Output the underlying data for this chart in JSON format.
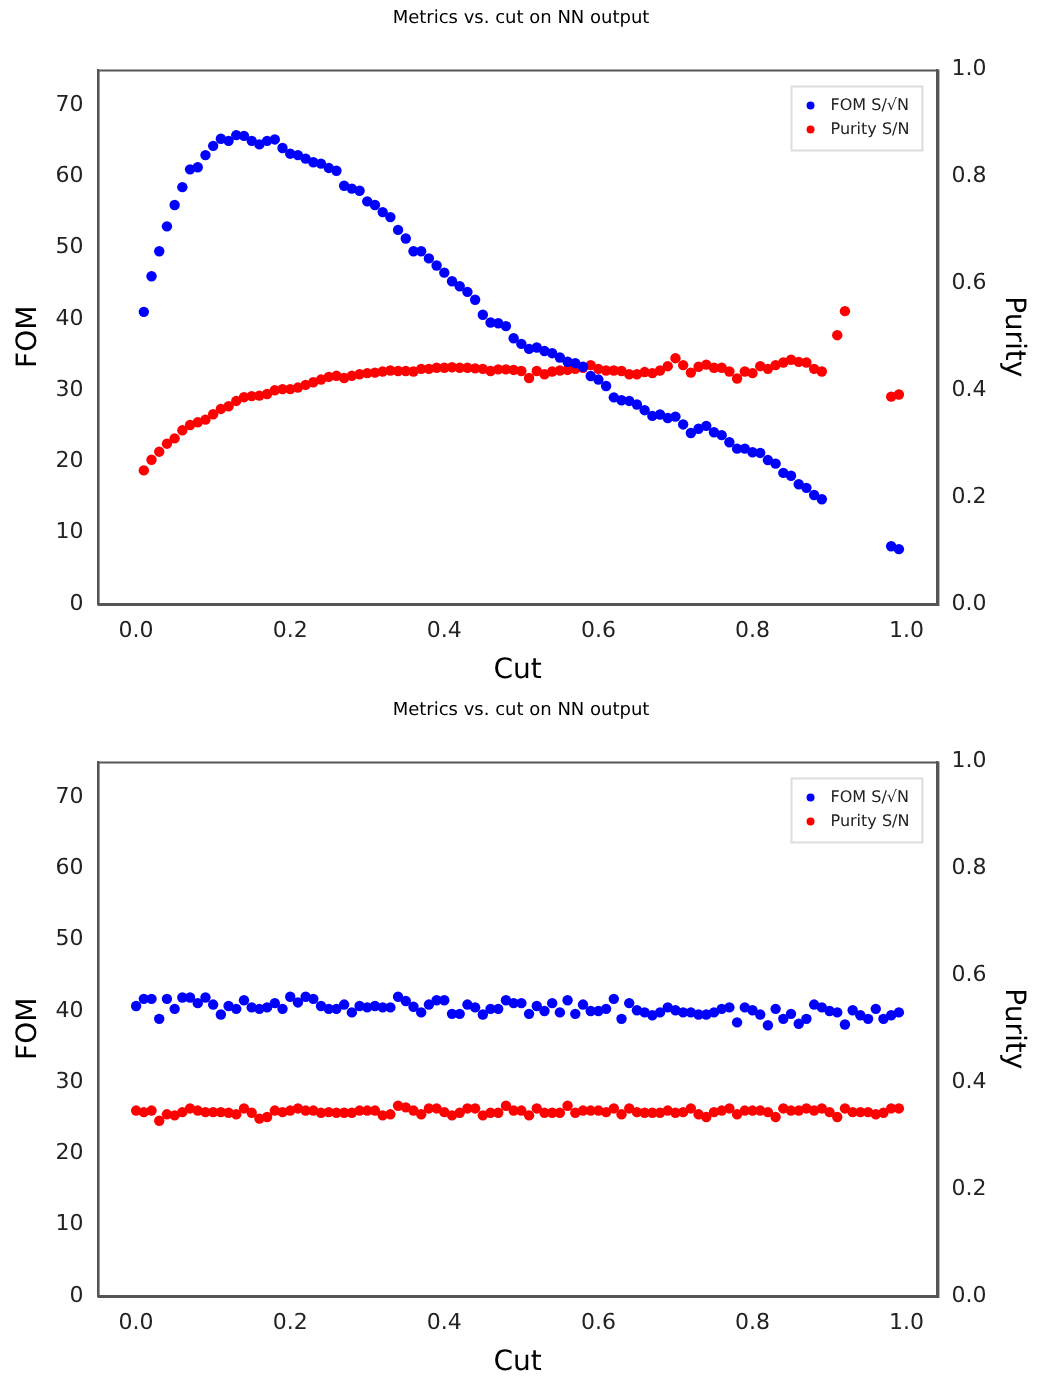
{
  "chart_data": [
    {
      "type": "scatter",
      "title": "Metrics vs. cut on NN output",
      "xlabel": "Cut",
      "ylabel": "FOM",
      "y2label": "Purity",
      "legend": "top right",
      "grid": false,
      "marker": "circle",
      "xlim": [
        -0.05,
        1.04
      ],
      "xticks": [
        {
          "value": 0,
          "label": "0.0"
        },
        {
          "value": 0.2,
          "label": "0.2"
        },
        {
          "value": 0.4,
          "label": "0.4"
        },
        {
          "value": 0.6,
          "label": "0.6"
        },
        {
          "value": 0.8,
          "label": "0.8"
        },
        {
          "value": 1,
          "label": "1.0"
        }
      ],
      "ylim": [
        0,
        75
      ],
      "yticks": [
        0,
        10,
        20,
        30,
        40,
        50,
        60,
        70
      ],
      "y2lim": [
        0,
        1
      ],
      "y2ticks": [
        {
          "value": 0,
          "label": "0.0"
        },
        {
          "value": 0.2,
          "label": "0.2"
        },
        {
          "value": 0.4,
          "label": "0.4"
        },
        {
          "value": 0.6,
          "label": "0.6"
        },
        {
          "value": 0.8,
          "label": "0.8"
        },
        {
          "value": 1,
          "label": "1.0"
        }
      ],
      "series": [
        {
          "name": "FOM S/√N",
          "color": "#0000ff",
          "x": [
            0.01,
            0.02,
            0.03,
            0.04,
            0.05,
            0.06,
            0.07,
            0.08,
            0.09,
            0.1,
            0.11,
            0.12,
            0.13,
            0.14,
            0.15,
            0.16,
            0.17,
            0.18,
            0.19,
            0.2,
            0.21,
            0.22,
            0.23,
            0.24,
            0.25,
            0.26,
            0.27,
            0.28,
            0.29,
            0.3,
            0.31,
            0.32,
            0.33,
            0.34,
            0.35,
            0.36,
            0.37,
            0.38,
            0.39,
            0.4,
            0.41,
            0.42,
            0.43,
            0.44,
            0.45,
            0.46,
            0.47,
            0.48,
            0.49,
            0.5,
            0.51,
            0.52,
            0.53,
            0.54,
            0.55,
            0.56,
            0.57,
            0.58,
            0.59,
            0.6,
            0.61,
            0.62,
            0.63,
            0.64,
            0.65,
            0.66,
            0.67,
            0.68,
            0.69,
            0.7,
            0.71,
            0.72,
            0.73,
            0.74,
            0.75,
            0.76,
            0.77,
            0.78,
            0.79,
            0.8,
            0.81,
            0.82,
            0.83,
            0.84,
            0.85,
            0.86,
            0.87,
            0.88,
            0.89,
            0.98,
            0.99
          ],
          "values": [
            41,
            46,
            49.5,
            53,
            56,
            58.5,
            61,
            61.3,
            63,
            64.3,
            65.3,
            65,
            65.8,
            65.7,
            65,
            64.5,
            65,
            65.2,
            64,
            63.2,
            63,
            62.5,
            62,
            61.8,
            61.2,
            60.8,
            58.7,
            58.3,
            58,
            56.5,
            56,
            55,
            54.3,
            52.5,
            51.3,
            49.5,
            49.5,
            48.5,
            47.5,
            46.5,
            45.3,
            44.6,
            43.8,
            42.7,
            40.6,
            39.5,
            39.4,
            39,
            37.3,
            36.5,
            35.8,
            36,
            35.5,
            35.2,
            34.6,
            34,
            33.8,
            33.3,
            32,
            31.5,
            30.6,
            29,
            28.6,
            28.5,
            28,
            27.2,
            26.4,
            26.6,
            26.1,
            26.3,
            25.2,
            24,
            24.6,
            25,
            24.1,
            23.7,
            22.7,
            21.8,
            21.8,
            21.3,
            21.2,
            20.2,
            19.7,
            18.4,
            18,
            16.8,
            16.3,
            15.3,
            14.7,
            8.1,
            7.7
          ]
        },
        {
          "name": "Purity S/N",
          "color": "#ff0000",
          "axis": "y2",
          "x": [
            0.01,
            0.02,
            0.03,
            0.04,
            0.05,
            0.06,
            0.07,
            0.08,
            0.09,
            0.1,
            0.11,
            0.12,
            0.13,
            0.14,
            0.15,
            0.16,
            0.17,
            0.18,
            0.19,
            0.2,
            0.21,
            0.22,
            0.23,
            0.24,
            0.25,
            0.26,
            0.27,
            0.28,
            0.29,
            0.3,
            0.31,
            0.32,
            0.33,
            0.34,
            0.35,
            0.36,
            0.37,
            0.38,
            0.39,
            0.4,
            0.41,
            0.42,
            0.43,
            0.44,
            0.45,
            0.46,
            0.47,
            0.48,
            0.49,
            0.5,
            0.51,
            0.52,
            0.53,
            0.54,
            0.55,
            0.56,
            0.57,
            0.58,
            0.59,
            0.6,
            0.61,
            0.62,
            0.63,
            0.64,
            0.65,
            0.66,
            0.67,
            0.68,
            0.69,
            0.7,
            0.71,
            0.72,
            0.73,
            0.74,
            0.75,
            0.76,
            0.77,
            0.78,
            0.79,
            0.8,
            0.81,
            0.82,
            0.83,
            0.84,
            0.85,
            0.86,
            0.87,
            0.88,
            0.89,
            0.91,
            0.92,
            0.98,
            0.99
          ],
          "values": [
            0.25,
            0.27,
            0.285,
            0.3,
            0.31,
            0.325,
            0.335,
            0.34,
            0.345,
            0.355,
            0.365,
            0.37,
            0.38,
            0.387,
            0.389,
            0.39,
            0.393,
            0.4,
            0.402,
            0.402,
            0.405,
            0.41,
            0.415,
            0.42,
            0.425,
            0.427,
            0.423,
            0.427,
            0.43,
            0.432,
            0.433,
            0.435,
            0.437,
            0.436,
            0.436,
            0.435,
            0.44,
            0.44,
            0.442,
            0.442,
            0.443,
            0.442,
            0.442,
            0.441,
            0.44,
            0.436,
            0.439,
            0.439,
            0.438,
            0.436,
            0.423,
            0.436,
            0.43,
            0.435,
            0.437,
            0.438,
            0.44,
            0.442,
            0.447,
            0.44,
            0.437,
            0.437,
            0.436,
            0.43,
            0.43,
            0.434,
            0.432,
            0.437,
            0.445,
            0.46,
            0.447,
            0.433,
            0.444,
            0.448,
            0.442,
            0.442,
            0.435,
            0.422,
            0.435,
            0.432,
            0.445,
            0.44,
            0.447,
            0.452,
            0.457,
            0.453,
            0.452,
            0.44,
            0.435,
            0.503,
            0.548,
            0.388,
            0.392
          ]
        }
      ]
    },
    {
      "type": "scatter",
      "title": "Metrics vs. cut on NN output",
      "xlabel": "Cut",
      "ylabel": "FOM",
      "y2label": "Purity",
      "legend": "top right",
      "grid": false,
      "marker": "circle",
      "xlim": [
        -0.05,
        1.04
      ],
      "xticks": [
        {
          "value": 0,
          "label": "0.0"
        },
        {
          "value": 0.2,
          "label": "0.2"
        },
        {
          "value": 0.4,
          "label": "0.4"
        },
        {
          "value": 0.6,
          "label": "0.6"
        },
        {
          "value": 0.8,
          "label": "0.8"
        },
        {
          "value": 1,
          "label": "1.0"
        }
      ],
      "ylim": [
        0,
        75
      ],
      "yticks": [
        0,
        10,
        20,
        30,
        40,
        50,
        60,
        70
      ],
      "y2lim": [
        0,
        1
      ],
      "y2ticks": [
        {
          "value": 0,
          "label": "0.0"
        },
        {
          "value": 0.2,
          "label": "0.2"
        },
        {
          "value": 0.4,
          "label": "0.4"
        },
        {
          "value": 0.6,
          "label": "0.6"
        },
        {
          "value": 0.8,
          "label": "0.8"
        },
        {
          "value": 1,
          "label": "1.0"
        }
      ],
      "series": [
        {
          "name": "FOM S/√N",
          "color": "#0000ff",
          "x": [
            0,
            0.01,
            0.02,
            0.03,
            0.04,
            0.05,
            0.06,
            0.07,
            0.08,
            0.09,
            0.1,
            0.11,
            0.12,
            0.13,
            0.14,
            0.15,
            0.16,
            0.17,
            0.18,
            0.19,
            0.2,
            0.21,
            0.22,
            0.23,
            0.24,
            0.25,
            0.26,
            0.27,
            0.28,
            0.29,
            0.3,
            0.31,
            0.32,
            0.33,
            0.34,
            0.35,
            0.36,
            0.37,
            0.38,
            0.39,
            0.4,
            0.41,
            0.42,
            0.43,
            0.44,
            0.45,
            0.46,
            0.47,
            0.48,
            0.49,
            0.5,
            0.51,
            0.52,
            0.53,
            0.54,
            0.55,
            0.56,
            0.57,
            0.58,
            0.59,
            0.6,
            0.61,
            0.62,
            0.63,
            0.64,
            0.65,
            0.66,
            0.67,
            0.68,
            0.69,
            0.7,
            0.71,
            0.72,
            0.73,
            0.74,
            0.75,
            0.76,
            0.77,
            0.78,
            0.79,
            0.8,
            0.81,
            0.82,
            0.83,
            0.84,
            0.85,
            0.86,
            0.87,
            0.88,
            0.89,
            0.9,
            0.91,
            0.92,
            0.93,
            0.94,
            0.95,
            0.96,
            0.97,
            0.98,
            0.99
          ],
          "values": [
            40.7,
            41.7,
            41.7,
            38.9,
            41.7,
            40.3,
            41.9,
            41.9,
            41.1,
            41.9,
            40.9,
            39.5,
            40.7,
            40.3,
            41.5,
            40.5,
            40.3,
            40.5,
            41.1,
            40.3,
            42.0,
            41.2,
            42.0,
            41.7,
            40.7,
            40.3,
            40.3,
            40.9,
            39.8,
            40.7,
            40.5,
            40.7,
            40.5,
            40.5,
            42.0,
            41.4,
            40.6,
            39.8,
            40.9,
            41.5,
            41.5,
            39.6,
            39.6,
            40.9,
            40.5,
            39.5,
            40.3,
            40.3,
            41.5,
            41.1,
            41.1,
            39.6,
            40.7,
            40.0,
            41.1,
            39.8,
            41.5,
            39.6,
            40.9,
            40.0,
            40.0,
            40.3,
            41.7,
            38.9,
            41.1,
            40.1,
            39.8,
            39.4,
            39.8,
            40.5,
            40.1,
            39.8,
            39.8,
            39.5,
            39.5,
            39.8,
            40.3,
            40.5,
            38.4,
            40.5,
            40.1,
            39.5,
            38.0,
            40.3,
            38.9,
            39.6,
            38.2,
            38.9,
            40.9,
            40.5,
            40.0,
            39.8,
            38.1,
            40.1,
            39.4,
            38.9,
            40.3,
            38.9,
            39.4,
            39.8
          ]
        },
        {
          "name": "Purity S/N",
          "color": "#ff0000",
          "axis": "y2",
          "x": [
            0,
            0.01,
            0.02,
            0.03,
            0.04,
            0.05,
            0.06,
            0.07,
            0.08,
            0.09,
            0.1,
            0.11,
            0.12,
            0.13,
            0.14,
            0.15,
            0.16,
            0.17,
            0.18,
            0.19,
            0.2,
            0.21,
            0.22,
            0.23,
            0.24,
            0.25,
            0.26,
            0.27,
            0.28,
            0.29,
            0.3,
            0.31,
            0.32,
            0.33,
            0.34,
            0.35,
            0.36,
            0.37,
            0.38,
            0.39,
            0.4,
            0.41,
            0.42,
            0.43,
            0.44,
            0.45,
            0.46,
            0.47,
            0.48,
            0.49,
            0.5,
            0.51,
            0.52,
            0.53,
            0.54,
            0.55,
            0.56,
            0.57,
            0.58,
            0.59,
            0.6,
            0.61,
            0.62,
            0.63,
            0.64,
            0.65,
            0.66,
            0.67,
            0.68,
            0.69,
            0.7,
            0.71,
            0.72,
            0.73,
            0.74,
            0.75,
            0.76,
            0.77,
            0.78,
            0.79,
            0.8,
            0.81,
            0.82,
            0.83,
            0.84,
            0.85,
            0.86,
            0.87,
            0.88,
            0.89,
            0.9,
            0.91,
            0.92,
            0.93,
            0.94,
            0.95,
            0.96,
            0.97,
            0.98,
            0.99
          ],
          "values": [
            0.347,
            0.344,
            0.347,
            0.328,
            0.34,
            0.338,
            0.344,
            0.351,
            0.347,
            0.344,
            0.344,
            0.344,
            0.343,
            0.34,
            0.351,
            0.343,
            0.332,
            0.335,
            0.347,
            0.344,
            0.347,
            0.351,
            0.347,
            0.347,
            0.343,
            0.344,
            0.343,
            0.343,
            0.343,
            0.347,
            0.347,
            0.347,
            0.338,
            0.34,
            0.356,
            0.353,
            0.347,
            0.34,
            0.351,
            0.351,
            0.344,
            0.338,
            0.343,
            0.351,
            0.351,
            0.338,
            0.343,
            0.343,
            0.356,
            0.347,
            0.347,
            0.338,
            0.351,
            0.343,
            0.343,
            0.343,
            0.356,
            0.343,
            0.347,
            0.347,
            0.347,
            0.344,
            0.351,
            0.34,
            0.351,
            0.344,
            0.343,
            0.343,
            0.343,
            0.347,
            0.343,
            0.344,
            0.351,
            0.34,
            0.335,
            0.344,
            0.347,
            0.351,
            0.34,
            0.347,
            0.347,
            0.347,
            0.344,
            0.335,
            0.351,
            0.347,
            0.347,
            0.351,
            0.347,
            0.351,
            0.344,
            0.335,
            0.351,
            0.344,
            0.344,
            0.344,
            0.34,
            0.343,
            0.351,
            0.351
          ]
        }
      ]
    }
  ]
}
